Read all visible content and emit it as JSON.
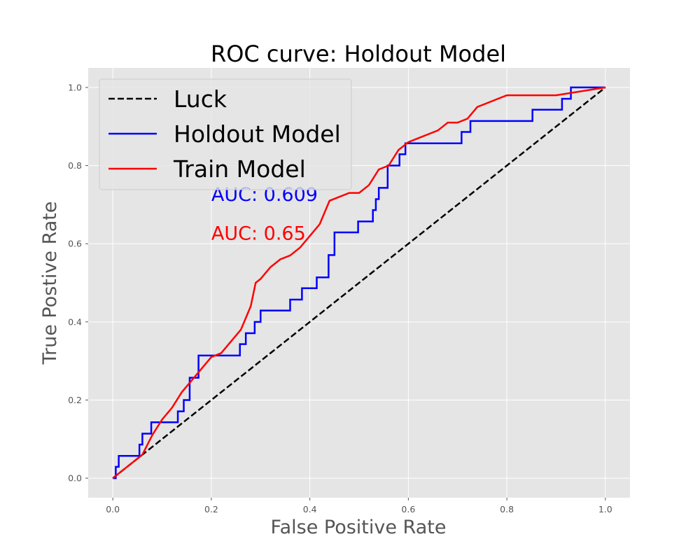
{
  "chart_data": {
    "type": "line",
    "title": "ROC curve: Holdout Model",
    "xlabel": "False Positive Rate",
    "ylabel": "True Postive Rate",
    "xlim": [
      -0.05,
      1.05
    ],
    "ylim": [
      -0.05,
      1.05
    ],
    "x_ticks": [
      "0.0",
      "0.2",
      "0.4",
      "0.6",
      "0.8",
      "1.0"
    ],
    "y_ticks": [
      "0.0",
      "0.2",
      "0.4",
      "0.6",
      "0.8",
      "1.0"
    ],
    "grid": true,
    "legend_position": "top-left",
    "series": [
      {
        "name": "Luck",
        "color": "#000000",
        "dash": "dashed",
        "x": [
          0,
          1
        ],
        "y": [
          0,
          1
        ]
      },
      {
        "name": "Holdout Model",
        "color": "#0000ff",
        "dash": "solid",
        "x": [
          0,
          0.006,
          0.006,
          0.012,
          0.012,
          0.054,
          0.054,
          0.06,
          0.06,
          0.078,
          0.078,
          0.132,
          0.132,
          0.144,
          0.144,
          0.156,
          0.156,
          0.174,
          0.174,
          0.258,
          0.258,
          0.27,
          0.27,
          0.288,
          0.288,
          0.3,
          0.3,
          0.36,
          0.36,
          0.384,
          0.384,
          0.414,
          0.414,
          0.438,
          0.438,
          0.45,
          0.45,
          0.498,
          0.498,
          0.528,
          0.528,
          0.534,
          0.534,
          0.54,
          0.54,
          0.558,
          0.558,
          0.582,
          0.582,
          0.594,
          0.594,
          0.708,
          0.708,
          0.726,
          0.726,
          0.852,
          0.852,
          0.912,
          0.912,
          0.93,
          0.93,
          1.0
        ],
        "y": [
          0,
          0,
          0.029,
          0.029,
          0.057,
          0.057,
          0.086,
          0.086,
          0.114,
          0.114,
          0.143,
          0.143,
          0.171,
          0.171,
          0.2,
          0.2,
          0.257,
          0.257,
          0.314,
          0.314,
          0.343,
          0.343,
          0.371,
          0.371,
          0.4,
          0.4,
          0.429,
          0.429,
          0.457,
          0.457,
          0.486,
          0.486,
          0.514,
          0.514,
          0.571,
          0.571,
          0.629,
          0.629,
          0.657,
          0.657,
          0.686,
          0.686,
          0.714,
          0.714,
          0.743,
          0.743,
          0.8,
          0.8,
          0.829,
          0.829,
          0.857,
          0.857,
          0.886,
          0.886,
          0.914,
          0.914,
          0.943,
          0.943,
          0.971,
          0.971,
          1.0,
          1.0
        ]
      },
      {
        "name": "Train Model",
        "color": "#ff0000",
        "dash": "solid",
        "x": [
          0,
          0.02,
          0.04,
          0.06,
          0.08,
          0.1,
          0.12,
          0.14,
          0.16,
          0.18,
          0.2,
          0.22,
          0.24,
          0.26,
          0.28,
          0.29,
          0.3,
          0.32,
          0.34,
          0.36,
          0.38,
          0.4,
          0.42,
          0.44,
          0.46,
          0.48,
          0.5,
          0.52,
          0.54,
          0.56,
          0.58,
          0.6,
          0.62,
          0.64,
          0.66,
          0.68,
          0.7,
          0.72,
          0.74,
          0.76,
          0.78,
          0.8,
          0.9,
          0.95,
          1.0
        ],
        "y": [
          0,
          0.02,
          0.04,
          0.06,
          0.11,
          0.15,
          0.18,
          0.22,
          0.25,
          0.28,
          0.31,
          0.32,
          0.35,
          0.38,
          0.44,
          0.5,
          0.51,
          0.54,
          0.56,
          0.57,
          0.59,
          0.62,
          0.65,
          0.71,
          0.72,
          0.73,
          0.73,
          0.75,
          0.79,
          0.8,
          0.84,
          0.86,
          0.87,
          0.88,
          0.89,
          0.91,
          0.91,
          0.92,
          0.95,
          0.96,
          0.97,
          0.98,
          0.98,
          0.99,
          1.0
        ]
      }
    ],
    "annotations": [
      {
        "text": "AUC: 0.609",
        "x": 0.2,
        "y": 0.71,
        "color": "#0000ff"
      },
      {
        "text": "AUC: 0.65",
        "x": 0.2,
        "y": 0.61,
        "color": "#ff0000"
      }
    ]
  }
}
